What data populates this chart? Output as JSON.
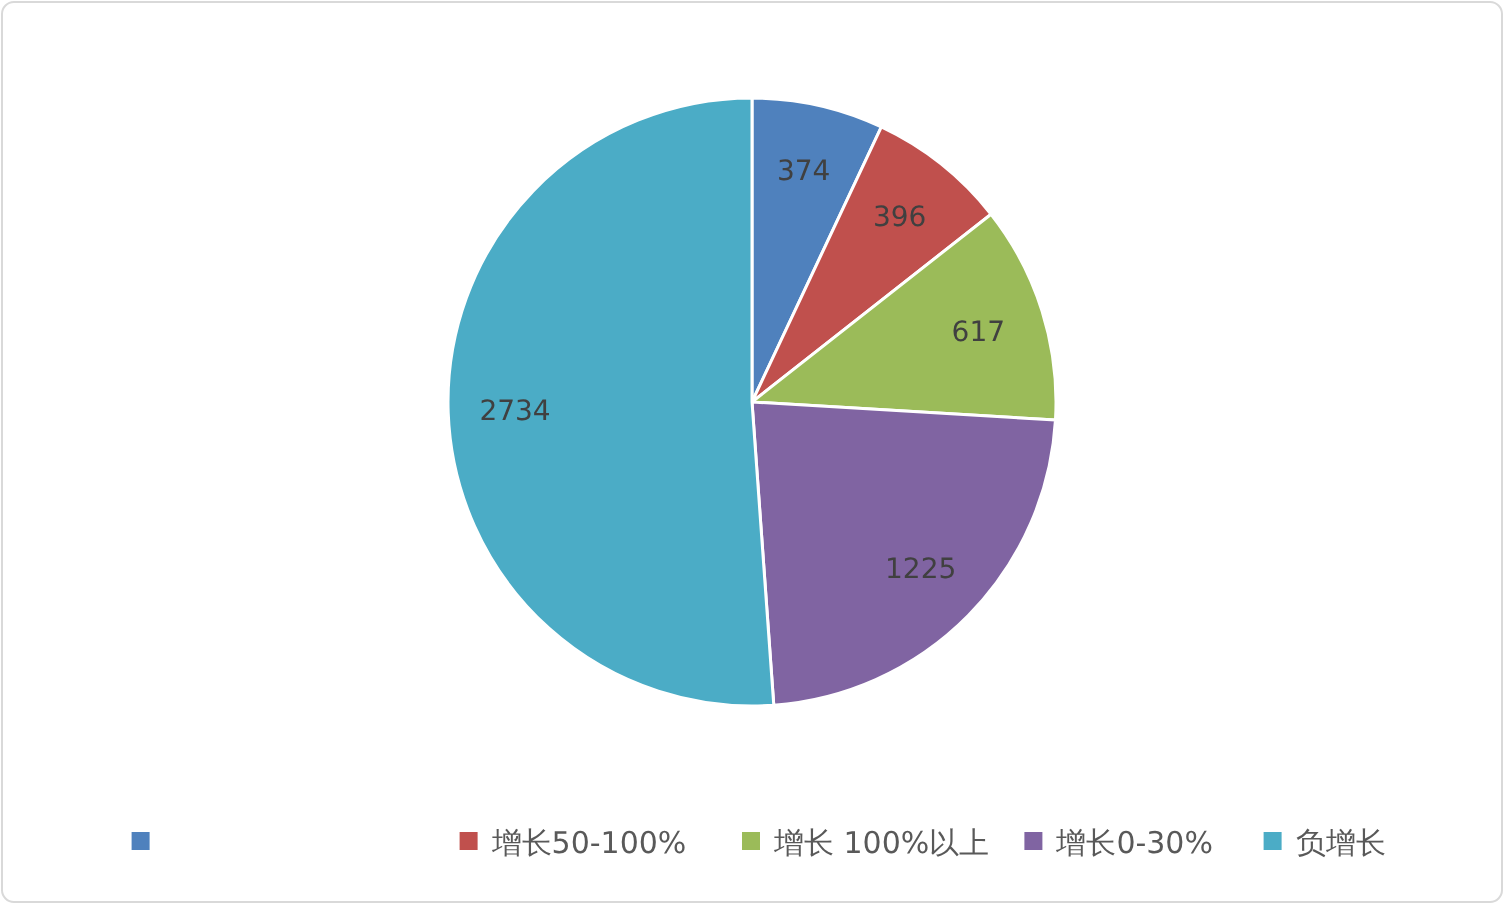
{
  "chart_data": {
    "type": "pie",
    "categories": [
      null,
      "增长50-100%",
      "增长 100%以上",
      "增长0-30%",
      "负增长"
    ],
    "values": [
      374,
      396,
      617,
      1225,
      2734
    ],
    "colors": [
      "#4f81bd",
      "#c0504d",
      "#9bbb59",
      "#8064a2",
      "#4bacc6"
    ],
    "data_labels": true,
    "legend": "bottom"
  }
}
